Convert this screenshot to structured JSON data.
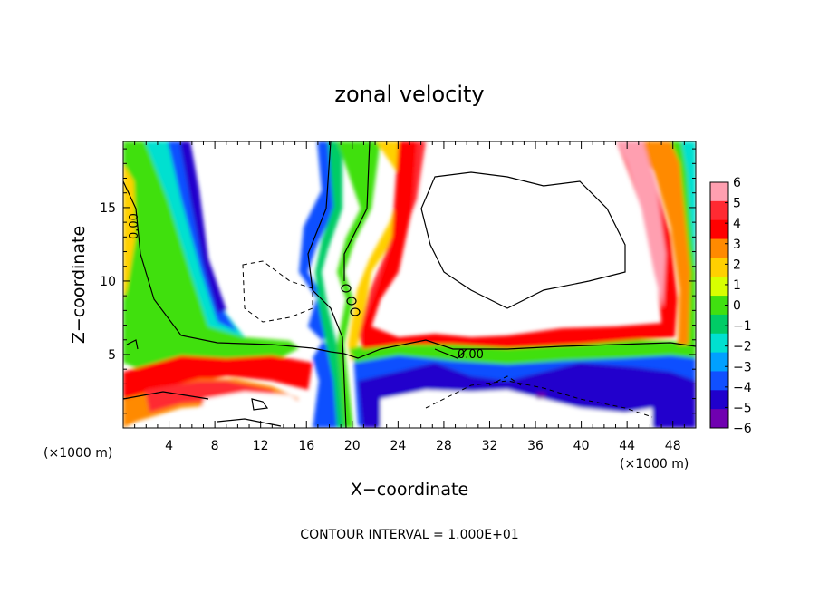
{
  "chart_data": {
    "type": "heatmap",
    "title": "zonal velocity",
    "xlabel": "X−coordinate",
    "ylabel": "Z−coordinate",
    "x_unit_label": "(×1000 m)",
    "z_unit_label": "(×1000 m)",
    "x_unit": "×1000 m",
    "xlim": [
      0,
      50
    ],
    "ylim": [
      0,
      19.5
    ],
    "x_ticks": [
      4,
      8,
      12,
      16,
      20,
      24,
      28,
      32,
      36,
      40,
      44,
      48
    ],
    "y_ticks": [
      5,
      10,
      15
    ],
    "colorbar": {
      "ticks": [
        6,
        5,
        4,
        3,
        2,
        1,
        0,
        -1,
        -2,
        -3,
        -4,
        -5,
        -6
      ],
      "tick_labels": [
        "6",
        "5",
        "4",
        "3",
        "2",
        "1",
        "0",
        "−1",
        "−2",
        "−3",
        "−4",
        "−5",
        "−6"
      ],
      "range": [
        -6,
        6
      ],
      "colors": [
        "#ff9fb0",
        "#ff2a32",
        "#ff0000",
        "#ff8a00",
        "#ffd000",
        "#d8ff00",
        "#40e010",
        "#00cc66",
        "#00e0d0",
        "#00a0ff",
        "#1050ff",
        "#2000cc",
        "#7000b0"
      ]
    },
    "zero_contour_labels": [
      "0.00",
      "0.00"
    ],
    "contour_interval_label": "CONTOUR INTERVAL = 1.000E+01"
  }
}
